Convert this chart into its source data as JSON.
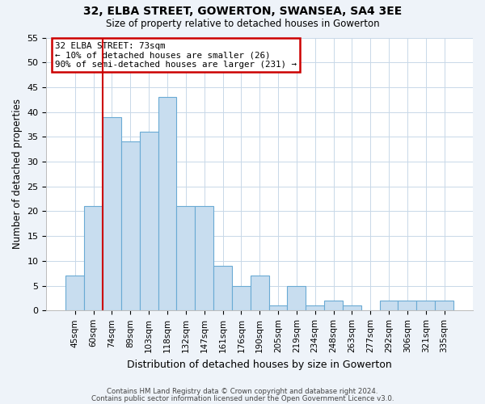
{
  "title": "32, ELBA STREET, GOWERTON, SWANSEA, SA4 3EE",
  "subtitle": "Size of property relative to detached houses in Gowerton",
  "xlabel": "Distribution of detached houses by size in Gowerton",
  "ylabel": "Number of detached properties",
  "bin_labels": [
    "45sqm",
    "60sqm",
    "74sqm",
    "89sqm",
    "103sqm",
    "118sqm",
    "132sqm",
    "147sqm",
    "161sqm",
    "176sqm",
    "190sqm",
    "205sqm",
    "219sqm",
    "234sqm",
    "248sqm",
    "263sqm",
    "277sqm",
    "292sqm",
    "306sqm",
    "321sqm",
    "335sqm"
  ],
  "bar_heights": [
    7,
    21,
    39,
    34,
    36,
    43,
    21,
    21,
    9,
    5,
    7,
    1,
    5,
    1,
    2,
    1,
    0,
    2,
    2,
    2,
    2
  ],
  "bar_color": "#c8ddef",
  "bar_edge_color": "#6aaad4",
  "vline_color": "#cc0000",
  "annotation_title": "32 ELBA STREET: 73sqm",
  "annotation_line1": "← 10% of detached houses are smaller (26)",
  "annotation_line2": "90% of semi-detached houses are larger (231) →",
  "annotation_box_color": "#cc0000",
  "ylim": [
    0,
    55
  ],
  "yticks": [
    0,
    5,
    10,
    15,
    20,
    25,
    30,
    35,
    40,
    45,
    50,
    55
  ],
  "footer_line1": "Contains HM Land Registry data © Crown copyright and database right 2024.",
  "footer_line2": "Contains public sector information licensed under the Open Government Licence v3.0.",
  "bg_color": "#eef3f9",
  "plot_bg_color": "#ffffff"
}
